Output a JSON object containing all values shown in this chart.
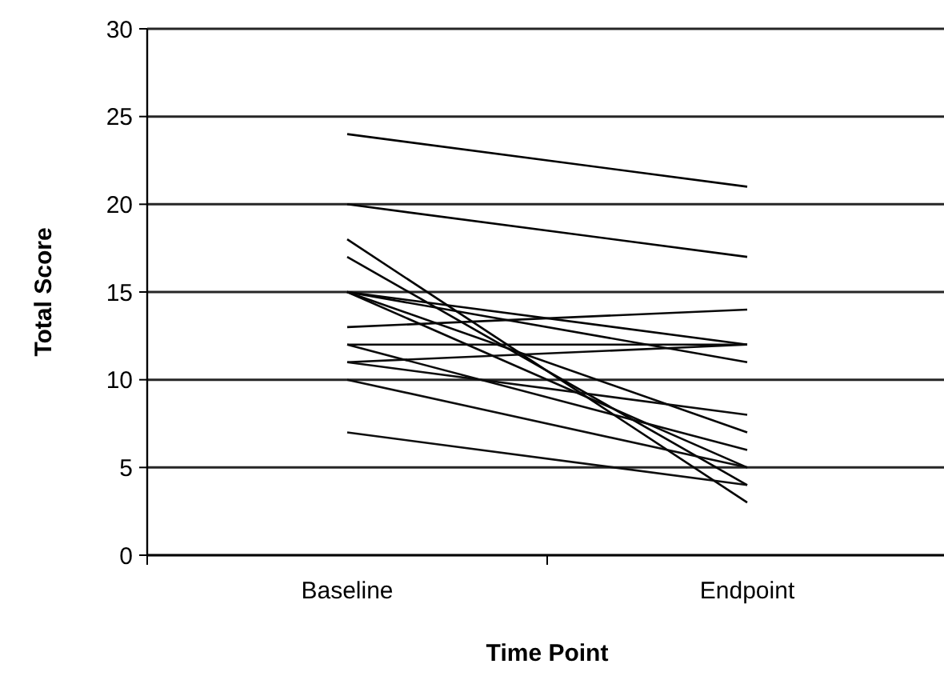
{
  "chart_data": {
    "type": "line",
    "xlabel": "Time Point",
    "ylabel": "Total Score",
    "categories": [
      "Baseline",
      "Endpoint"
    ],
    "ylim": [
      0,
      30
    ],
    "yticks": [
      0,
      5,
      10,
      15,
      20,
      25,
      30
    ],
    "grid": "y",
    "marker": "none",
    "line_style": "solid",
    "series": [
      {
        "color": "#000000",
        "values": [
          24,
          21
        ]
      },
      {
        "color": "#010101",
        "values": [
          20,
          17
        ]
      },
      {
        "color": "#020202",
        "values": [
          18,
          3
        ]
      },
      {
        "color": "#030303",
        "values": [
          17,
          4
        ]
      },
      {
        "color": "#040404",
        "values": [
          15,
          12
        ]
      },
      {
        "color": "#050505",
        "values": [
          15,
          11
        ]
      },
      {
        "color": "#060606",
        "values": [
          15,
          7
        ]
      },
      {
        "color": "#070707",
        "values": [
          15,
          5
        ]
      },
      {
        "color": "#080808",
        "values": [
          13,
          14
        ]
      },
      {
        "color": "#090909",
        "values": [
          12,
          12
        ]
      },
      {
        "color": "#0a0a0a",
        "values": [
          12,
          6
        ]
      },
      {
        "color": "#0b0b0b",
        "values": [
          11,
          12
        ]
      },
      {
        "color": "#0c0c0c",
        "values": [
          11,
          8
        ]
      },
      {
        "color": "#0d0d0d",
        "values": [
          10,
          5
        ]
      },
      {
        "color": "#0e0e0e",
        "values": [
          7,
          4
        ]
      }
    ]
  }
}
